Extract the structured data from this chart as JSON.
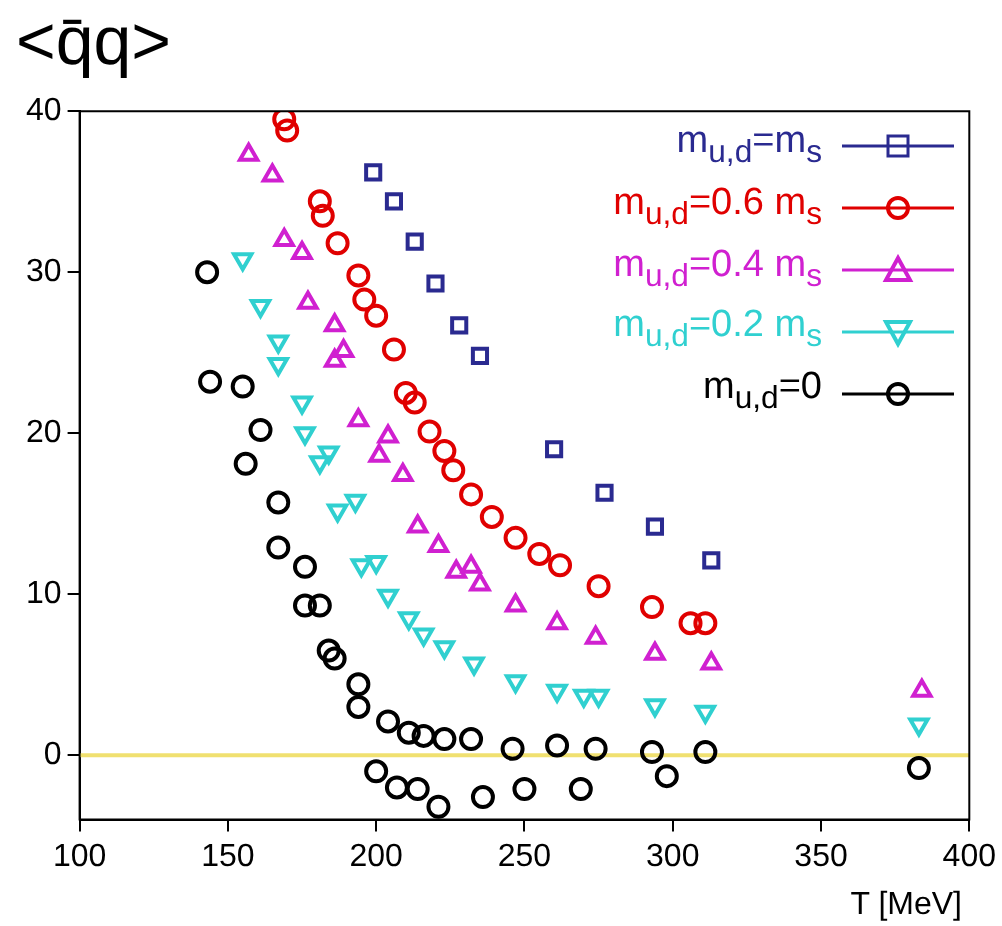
{
  "chart_data": {
    "type": "scatter",
    "ylabel": "<q̄q>",
    "xlabel": "T [MeV]",
    "xlim": [
      100,
      400
    ],
    "ylim": [
      -4,
      40
    ],
    "xticks": [
      100,
      150,
      200,
      250,
      300,
      350,
      400
    ],
    "yticks": [
      0,
      10,
      20,
      30,
      40
    ],
    "grid": false,
    "legend": "top right",
    "ref_lines": [
      {
        "axis": "y",
        "value": 0,
        "color": "#f0e070"
      }
    ],
    "series": [
      {
        "name": "m$_{u,d}$=m$_{s}$",
        "color": "#2a2a90",
        "marker": "square",
        "x": [
          199,
          206,
          213,
          220,
          228,
          235,
          260,
          277,
          294,
          313
        ],
        "values": [
          36.2,
          34.4,
          31.9,
          29.3,
          26.7,
          24.8,
          19.0,
          16.3,
          14.2,
          12.1
        ]
      },
      {
        "name": "m$_{u,d}$=0.6 m$_{s}$",
        "color": "#e00000",
        "marker": "circle",
        "x": [
          169,
          170,
          181,
          182,
          187,
          194,
          196,
          200,
          206,
          210,
          213,
          218,
          223,
          226,
          232,
          239,
          247,
          255,
          262,
          275,
          293,
          306,
          311
        ],
        "values": [
          39.5,
          38.8,
          34.4,
          33.5,
          31.8,
          29.8,
          28.3,
          27.3,
          25.2,
          22.5,
          21.9,
          20.1,
          18.9,
          17.7,
          16.2,
          14.8,
          13.5,
          12.5,
          11.8,
          10.5,
          9.2,
          8.2,
          8.2
        ]
      },
      {
        "name": "m$_{u,d}$=0.4 m$_{s}$",
        "color": "#d020d0",
        "marker": "triangle",
        "x": [
          157,
          165,
          169,
          175,
          177,
          186,
          186,
          189,
          194,
          201,
          204,
          209,
          214,
          221,
          227,
          232,
          235,
          247,
          261,
          274,
          294,
          313,
          384
        ],
        "values": [
          37.3,
          36.0,
          32.0,
          31.2,
          28.1,
          26.7,
          24.5,
          25.1,
          20.8,
          18.6,
          19.8,
          17.4,
          14.2,
          13.0,
          11.4,
          11.7,
          10.6,
          9.3,
          8.2,
          7.3,
          6.3,
          5.7,
          4.0
        ]
      },
      {
        "name": "m$_{u,d}$=0.2 m$_{s}$",
        "color": "#30d0d0",
        "marker": "triangle-down",
        "x": [
          155,
          161,
          167,
          167,
          175,
          176,
          181,
          184,
          187,
          193,
          195,
          200,
          204,
          211,
          216,
          223,
          233,
          247,
          261,
          270,
          275,
          294,
          311,
          383
        ],
        "values": [
          30.8,
          27.9,
          25.7,
          24.3,
          21.9,
          20.0,
          18.2,
          18.8,
          15.2,
          15.8,
          11.8,
          12.0,
          9.9,
          8.5,
          7.5,
          6.7,
          5.7,
          4.6,
          4.0,
          3.7,
          3.7,
          3.1,
          2.7,
          1.9
        ]
      },
      {
        "name": "m$_{u,d}$=0",
        "color": "#000000",
        "marker": "circle",
        "x": [
          143,
          144,
          155,
          161,
          156,
          167,
          167,
          176,
          176,
          181,
          184,
          186,
          194,
          194,
          200,
          204,
          207,
          211,
          214,
          216,
          221,
          223,
          232,
          236,
          246,
          250,
          261,
          269,
          274,
          293,
          298,
          311,
          383
        ],
        "values": [
          30.0,
          23.2,
          22.9,
          20.2,
          18.1,
          15.7,
          12.9,
          11.7,
          9.3,
          9.3,
          6.5,
          6.0,
          4.4,
          3.0,
          -1.0,
          2.1,
          -2.0,
          1.4,
          -2.1,
          1.2,
          -3.2,
          1.0,
          1.0,
          -2.6,
          0.4,
          -2.1,
          0.6,
          -2.1,
          0.4,
          0.2,
          -1.3,
          0.2,
          -0.8
        ]
      }
    ]
  }
}
